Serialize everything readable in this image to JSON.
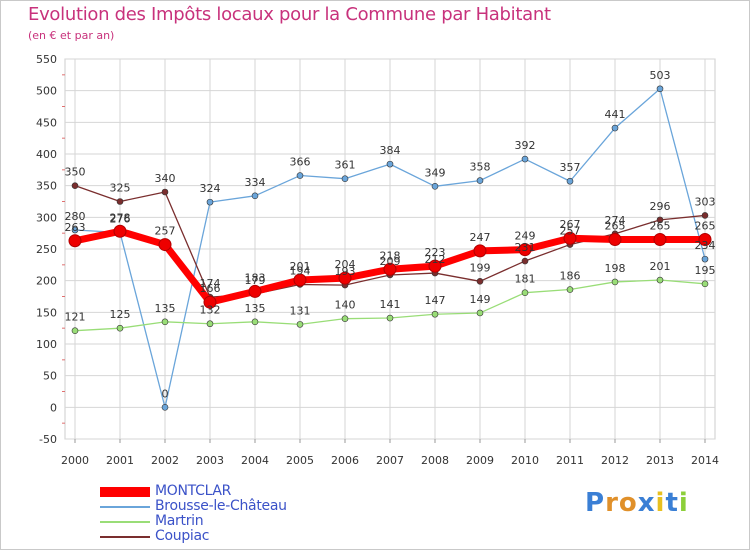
{
  "title": "Evolution des Impôts locaux pour la Commune par Habitant",
  "subtitle": "(en € et par an)",
  "brand": "Proxiti",
  "chart_data": {
    "type": "line",
    "categories": [
      "2000",
      "2001",
      "2002",
      "2003",
      "2004",
      "2005",
      "2006",
      "2007",
      "2008",
      "2009",
      "2010",
      "2011",
      "2012",
      "2013",
      "2014"
    ],
    "ylim": [
      -50,
      550
    ],
    "yticks": [
      -50,
      0,
      50,
      100,
      150,
      200,
      250,
      300,
      350,
      400,
      450,
      500,
      550
    ],
    "grid": true,
    "legend_position": "bottom-left",
    "series": [
      {
        "name": "MONTCLAR",
        "color": "#ff0000",
        "width": 7,
        "values": [
          263,
          278,
          257,
          166,
          183,
          201,
          204,
          218,
          223,
          247,
          249,
          267,
          265,
          265,
          265
        ],
        "labels": [
          "263",
          "278",
          "257",
          "166",
          "183",
          "201",
          "204",
          "218",
          "223",
          "247",
          "249",
          "267",
          "265",
          "265",
          "265"
        ]
      },
      {
        "name": "Brousse-le-Château",
        "color": "#6aa5da",
        "width": 1.3,
        "values": [
          280,
          276,
          0,
          324,
          334,
          366,
          361,
          384,
          349,
          358,
          392,
          357,
          441,
          503,
          234
        ],
        "labels": [
          "280",
          "276",
          "0",
          "324",
          "334",
          "366",
          "361",
          "384",
          "349",
          "358",
          "392",
          "357",
          "441",
          "503",
          "234"
        ]
      },
      {
        "name": "Martrin",
        "color": "#99dd77",
        "width": 1.3,
        "values": [
          121,
          125,
          135,
          132,
          135,
          131,
          140,
          141,
          147,
          149,
          181,
          186,
          198,
          201,
          195
        ],
        "labels": [
          "121",
          "125",
          "135",
          "132",
          "135",
          "131",
          "140",
          "141",
          "147",
          "149",
          "181",
          "186",
          "198",
          "201",
          "195"
        ]
      },
      {
        "name": "Coupiac",
        "color": "#7a2e2e",
        "width": 1.3,
        "values": [
          350,
          325,
          340,
          174,
          179,
          194,
          193,
          209,
          212,
          199,
          231,
          257,
          274,
          296,
          303
        ],
        "labels": [
          "350",
          "325",
          "340",
          "174",
          "179",
          "194",
          "193",
          "209",
          "212",
          "199",
          "231",
          "257",
          "274",
          "296",
          "303"
        ]
      }
    ]
  }
}
